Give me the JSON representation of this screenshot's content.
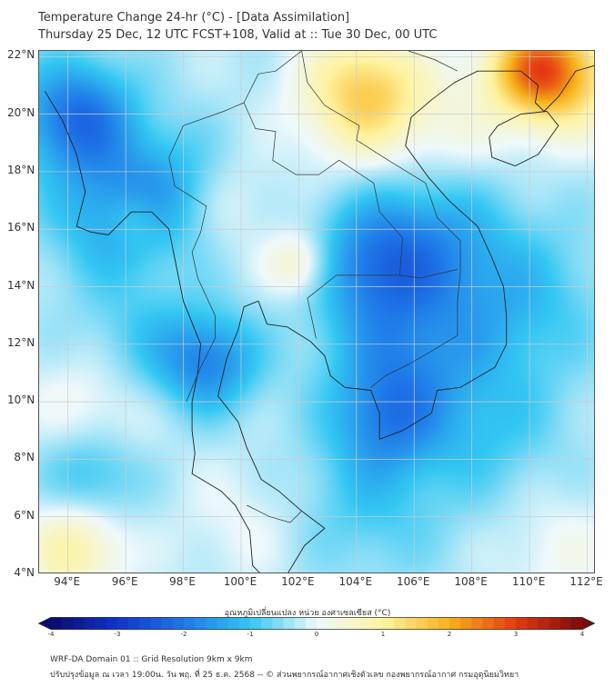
{
  "title_line1": "Temperature Change 24-hr (°C) - [Data Assimilation]",
  "title_line2": "Thursday 25 Dec, 12 UTC FCST+108, Valid at :: Tue 30 Dec, 00 UTC",
  "map": {
    "lon_range": [
      93,
      112.3
    ],
    "lat_range": [
      4,
      22.2
    ],
    "lat_ticks": [
      {
        "value": 22,
        "label": "22°N"
      },
      {
        "value": 20,
        "label": "20°N"
      },
      {
        "value": 18,
        "label": "18°N"
      },
      {
        "value": 16,
        "label": "16°N"
      },
      {
        "value": 14,
        "label": "14°N"
      },
      {
        "value": 12,
        "label": "12°N"
      },
      {
        "value": 10,
        "label": "10°N"
      },
      {
        "value": 8,
        "label": "8°N"
      },
      {
        "value": 6,
        "label": "6°N"
      },
      {
        "value": 4,
        "label": "4°N"
      }
    ],
    "lon_ticks": [
      {
        "value": 94,
        "label": "94°E"
      },
      {
        "value": 96,
        "label": "96°E"
      },
      {
        "value": 98,
        "label": "98°E"
      },
      {
        "value": 100,
        "label": "100°E"
      },
      {
        "value": 102,
        "label": "102°E"
      },
      {
        "value": 104,
        "label": "104°E"
      },
      {
        "value": 106,
        "label": "106°E"
      },
      {
        "value": 108,
        "label": "108°E"
      },
      {
        "value": 110,
        "label": "110°E"
      },
      {
        "value": 112,
        "label": "112°E"
      }
    ],
    "grid": true,
    "field_anomalies": [
      {
        "lon": 94.3,
        "lat": 19.9,
        "value": -1.8,
        "spread_deg": 1.4
      },
      {
        "lon": 95.5,
        "lat": 16.5,
        "value": -1.0,
        "spread_deg": 1.6
      },
      {
        "lon": 97.5,
        "lat": 17.5,
        "value": -0.8,
        "spread_deg": 1.5
      },
      {
        "lon": 98.9,
        "lat": 11.4,
        "value": -1.4,
        "spread_deg": 1.2
      },
      {
        "lon": 96.5,
        "lat": 12.0,
        "value": -0.6,
        "spread_deg": 1.6
      },
      {
        "lon": 104.5,
        "lat": 14.8,
        "value": -1.2,
        "spread_deg": 1.5
      },
      {
        "lon": 106.5,
        "lat": 15.5,
        "value": -1.0,
        "spread_deg": 1.8
      },
      {
        "lon": 105.5,
        "lat": 11.5,
        "value": -1.1,
        "spread_deg": 1.8
      },
      {
        "lon": 109.5,
        "lat": 13.5,
        "value": -0.8,
        "spread_deg": 2.0
      },
      {
        "lon": 105.0,
        "lat": 9.3,
        "value": -1.0,
        "spread_deg": 1.3
      },
      {
        "lon": 108.5,
        "lat": 9.0,
        "value": -0.6,
        "spread_deg": 1.8
      },
      {
        "lon": 104.5,
        "lat": 6.5,
        "value": -0.6,
        "spread_deg": 1.8
      },
      {
        "lon": 94.8,
        "lat": 7.5,
        "value": -0.9,
        "spread_deg": 1.2
      },
      {
        "lon": 99.5,
        "lat": 17.0,
        "value": 0.4,
        "spread_deg": 1.2
      },
      {
        "lon": 102.0,
        "lat": 14.8,
        "value": 1.0,
        "spread_deg": 0.8
      },
      {
        "lon": 96.3,
        "lat": 16.4,
        "value": 0.6,
        "spread_deg": 0.7
      },
      {
        "lon": 95.0,
        "lat": 9.8,
        "value": 0.6,
        "spread_deg": 1.5
      },
      {
        "lon": 94.2,
        "lat": 4.9,
        "value": 1.2,
        "spread_deg": 1.2
      },
      {
        "lon": 100.0,
        "lat": 5.8,
        "value": 0.3,
        "spread_deg": 1.5
      },
      {
        "lon": 104.3,
        "lat": 20.7,
        "value": 1.9,
        "spread_deg": 1.5
      },
      {
        "lon": 110.2,
        "lat": 21.6,
        "value": 2.4,
        "spread_deg": 1.2
      },
      {
        "lon": 111.5,
        "lat": 21.2,
        "value": 1.2,
        "spread_deg": 1.4
      },
      {
        "lon": 107.5,
        "lat": 19.5,
        "value": 0.4,
        "spread_deg": 1.4
      },
      {
        "lon": 111.0,
        "lat": 4.8,
        "value": 0.4,
        "spread_deg": 1.5
      }
    ]
  },
  "colorbar": {
    "title": "อุณหภูมิเปลี่ยนแปลง หน่วย องศาเซลเซียส (°C)",
    "min": -4,
    "max": 4,
    "ticks": [
      "-4",
      "-3",
      "-2",
      "-1",
      "0",
      "1",
      "2",
      "3",
      "4"
    ],
    "colors": [
      "#0a0a6e",
      "#1133cc",
      "#1f78e8",
      "#33c7f2",
      "#eef8fb",
      "#fff3a0",
      "#f7b21a",
      "#e53a12",
      "#7a0a0a"
    ]
  },
  "footer_line1": "WRF-DA Domain 01 :: Grid Resolution 9km x 9km",
  "footer_line2": "ปรับปรุงข้อมูล ณ เวลา 19:00น. วัน พฤ. ที่ 25 ธ.ค. 2568 -- © ส่วนพยากรณ์อากาศเชิงตัวเลข กองพยากรณ์อากาศ กรมอุตุนิยมวิทยา"
}
